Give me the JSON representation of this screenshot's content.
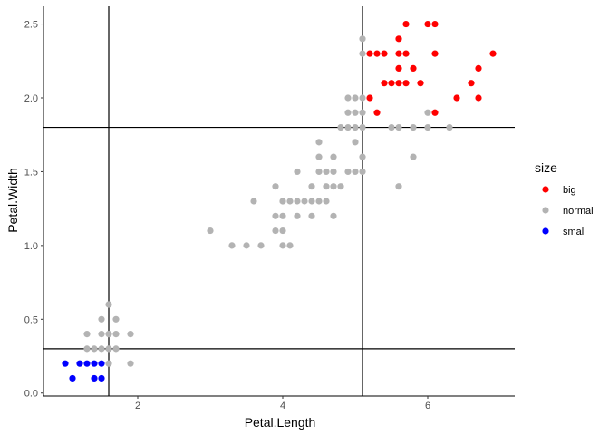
{
  "chart_data": {
    "type": "scatter",
    "xlabel": "Petal.Length",
    "ylabel": "Petal.Width",
    "xlim": [
      0.7,
      7.2
    ],
    "ylim": [
      -0.02,
      2.62
    ],
    "xticks": [
      2,
      4,
      6
    ],
    "yticks": [
      0.0,
      0.5,
      1.0,
      1.5,
      2.0,
      2.5
    ],
    "ytick_labels": [
      "0.0",
      "0.5",
      "1.0",
      "1.5",
      "2.0",
      "2.5"
    ],
    "grid": false,
    "legend_position": "right",
    "legend_title": "size",
    "reference_lines": {
      "vertical": [
        1.6,
        5.1
      ],
      "horizontal": [
        0.3,
        1.8
      ]
    },
    "series": [
      {
        "name": "big",
        "color": "#ff0000",
        "points": [
          [
            5.7,
            2.5
          ],
          [
            6.0,
            2.5
          ],
          [
            6.1,
            2.5
          ],
          [
            5.6,
            2.4
          ],
          [
            5.2,
            2.3
          ],
          [
            5.3,
            2.3
          ],
          [
            5.4,
            2.3
          ],
          [
            5.6,
            2.3
          ],
          [
            5.7,
            2.3
          ],
          [
            6.1,
            2.3
          ],
          [
            6.9,
            2.3
          ],
          [
            5.6,
            2.2
          ],
          [
            5.8,
            2.2
          ],
          [
            6.7,
            2.2
          ],
          [
            5.4,
            2.1
          ],
          [
            5.5,
            2.1
          ],
          [
            5.6,
            2.1
          ],
          [
            5.7,
            2.1
          ],
          [
            5.9,
            2.1
          ],
          [
            6.6,
            2.1
          ],
          [
            5.2,
            2.0
          ],
          [
            6.4,
            2.0
          ],
          [
            6.7,
            2.0
          ],
          [
            5.3,
            1.9
          ],
          [
            6.1,
            1.9
          ]
        ]
      },
      {
        "name": "normal",
        "color": "#b3b3b3",
        "points": [
          [
            1.6,
            0.6
          ],
          [
            1.5,
            0.5
          ],
          [
            1.7,
            0.5
          ],
          [
            1.3,
            0.4
          ],
          [
            1.5,
            0.4
          ],
          [
            1.6,
            0.4
          ],
          [
            1.7,
            0.4
          ],
          [
            1.9,
            0.4
          ],
          [
            1.3,
            0.3
          ],
          [
            1.4,
            0.3
          ],
          [
            1.5,
            0.3
          ],
          [
            1.6,
            0.3
          ],
          [
            1.7,
            0.3
          ],
          [
            1.2,
            0.2
          ],
          [
            1.6,
            0.2
          ],
          [
            1.9,
            0.2
          ],
          [
            3.0,
            1.1
          ],
          [
            3.3,
            1.0
          ],
          [
            3.5,
            1.0
          ],
          [
            3.7,
            1.0
          ],
          [
            4.0,
            1.0
          ],
          [
            4.1,
            1.0
          ],
          [
            3.9,
            1.1
          ],
          [
            4.0,
            1.1
          ],
          [
            3.6,
            1.3
          ],
          [
            3.9,
            1.2
          ],
          [
            4.0,
            1.2
          ],
          [
            4.2,
            1.2
          ],
          [
            4.4,
            1.2
          ],
          [
            4.7,
            1.2
          ],
          [
            4.0,
            1.3
          ],
          [
            4.1,
            1.3
          ],
          [
            4.2,
            1.3
          ],
          [
            4.3,
            1.3
          ],
          [
            4.4,
            1.3
          ],
          [
            4.5,
            1.3
          ],
          [
            4.6,
            1.3
          ],
          [
            4.0,
            1.3
          ],
          [
            3.9,
            1.4
          ],
          [
            4.4,
            1.4
          ],
          [
            4.6,
            1.4
          ],
          [
            4.7,
            1.4
          ],
          [
            4.8,
            1.4
          ],
          [
            5.6,
            1.4
          ],
          [
            4.2,
            1.5
          ],
          [
            4.5,
            1.5
          ],
          [
            4.6,
            1.5
          ],
          [
            4.7,
            1.5
          ],
          [
            4.9,
            1.5
          ],
          [
            5.0,
            1.5
          ],
          [
            5.1,
            1.5
          ],
          [
            4.5,
            1.6
          ],
          [
            4.7,
            1.6
          ],
          [
            5.1,
            1.6
          ],
          [
            5.8,
            1.6
          ],
          [
            4.5,
            1.7
          ],
          [
            5.0,
            1.7
          ],
          [
            4.8,
            1.8
          ],
          [
            4.9,
            1.8
          ],
          [
            5.0,
            1.8
          ],
          [
            5.1,
            1.8
          ],
          [
            5.5,
            1.8
          ],
          [
            5.6,
            1.8
          ],
          [
            5.8,
            1.8
          ],
          [
            6.0,
            1.8
          ],
          [
            6.3,
            1.8
          ],
          [
            4.9,
            1.9
          ],
          [
            5.0,
            1.9
          ],
          [
            5.1,
            1.9
          ],
          [
            4.9,
            2.0
          ],
          [
            5.0,
            2.0
          ],
          [
            5.1,
            2.0
          ],
          [
            5.1,
            2.3
          ],
          [
            5.1,
            2.4
          ],
          [
            6.0,
            1.9
          ]
        ]
      },
      {
        "name": "small",
        "color": "#0000ff",
        "points": [
          [
            1.0,
            0.2
          ],
          [
            1.1,
            0.1
          ],
          [
            1.2,
            0.2
          ],
          [
            1.3,
            0.2
          ],
          [
            1.4,
            0.2
          ],
          [
            1.5,
            0.2
          ],
          [
            1.4,
            0.1
          ],
          [
            1.5,
            0.1
          ]
        ]
      }
    ]
  }
}
